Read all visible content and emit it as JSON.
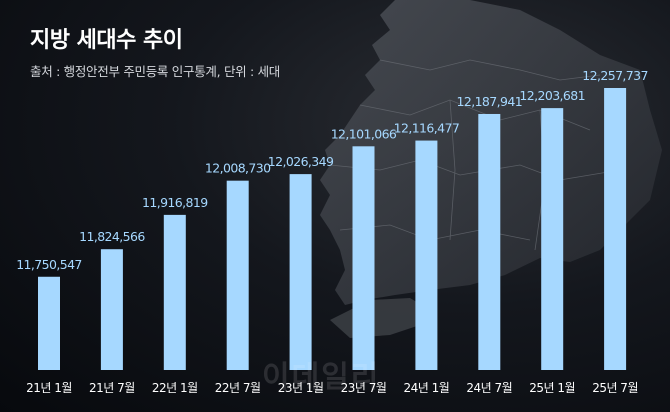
{
  "header": {
    "title": "지방 세대수 추이",
    "source": "출처 : 행정안전부 주민등록 인구통계, 단위 : 세대"
  },
  "watermark": "이데일리",
  "chart_data": {
    "type": "bar",
    "title": "지방 세대수 추이",
    "categories": [
      "21년 1월",
      "21년 7월",
      "22년 1월",
      "22년 7월",
      "23년 1월",
      "23년 7월",
      "24년 1월",
      "24년 7월",
      "25년 1월",
      "25년 7월"
    ],
    "values": [
      11750547,
      11824566,
      11916819,
      12008730,
      12026349,
      12101066,
      12116477,
      12187941,
      12203681,
      12257737
    ],
    "value_labels": [
      "11,750,547",
      "11,824,566",
      "11,916,819",
      "12,008,730",
      "12,026,349",
      "12,101,066",
      "12,116,477",
      "12,187,941",
      "12,203,681",
      "12,257,737"
    ],
    "ylim": [
      11500000,
      12300000
    ],
    "grid": false,
    "bar_color": "#a6d8ff",
    "label_color": "#a6d8ff",
    "axis_label_color": "#ffffff"
  }
}
